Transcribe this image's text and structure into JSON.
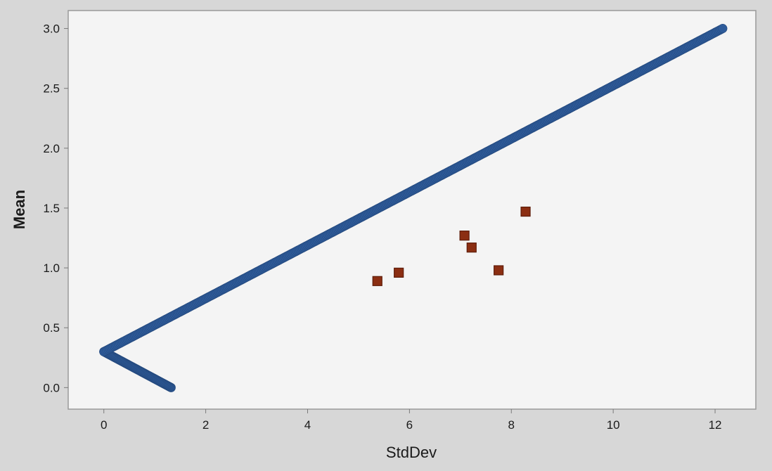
{
  "chart_data": {
    "type": "scatter",
    "xlabel": "StdDev",
    "ylabel": "Mean",
    "xlim": [
      -0.7,
      12.8
    ],
    "ylim": [
      -0.18,
      3.15
    ],
    "x_ticks": [
      0,
      2,
      4,
      6,
      8,
      10,
      12
    ],
    "y_ticks": [
      0.0,
      0.5,
      1.0,
      1.5,
      2.0,
      2.5,
      3.0
    ],
    "x_tick_labels": [
      "0",
      "2",
      "4",
      "6",
      "8",
      "10",
      "12"
    ],
    "y_tick_labels": [
      "0.0",
      "0.5",
      "1.0",
      "1.5",
      "2.0",
      "2.5",
      "3.0"
    ],
    "grid": false,
    "series": [
      {
        "marker": "circle",
        "color": "#2e5b9a",
        "style": "dense-band",
        "segments": [
          {
            "from": [
              1.32,
              0.0
            ],
            "to": [
              0.0,
              0.3
            ],
            "samples": 90
          },
          {
            "from": [
              0.0,
              0.3
            ],
            "to": [
              12.15,
              3.0
            ],
            "samples": 420
          }
        ]
      },
      {
        "marker": "square",
        "color": "#8b2e12",
        "points": [
          {
            "x": 5.37,
            "y": 0.89
          },
          {
            "x": 5.79,
            "y": 0.96
          },
          {
            "x": 7.08,
            "y": 1.27
          },
          {
            "x": 7.22,
            "y": 1.17
          },
          {
            "x": 7.75,
            "y": 0.98
          },
          {
            "x": 8.28,
            "y": 1.47
          }
        ]
      }
    ],
    "colors": {
      "page_background": "#d7d7d7",
      "plot_background": "#f4f4f4",
      "frame": "#9a9a9a"
    }
  }
}
